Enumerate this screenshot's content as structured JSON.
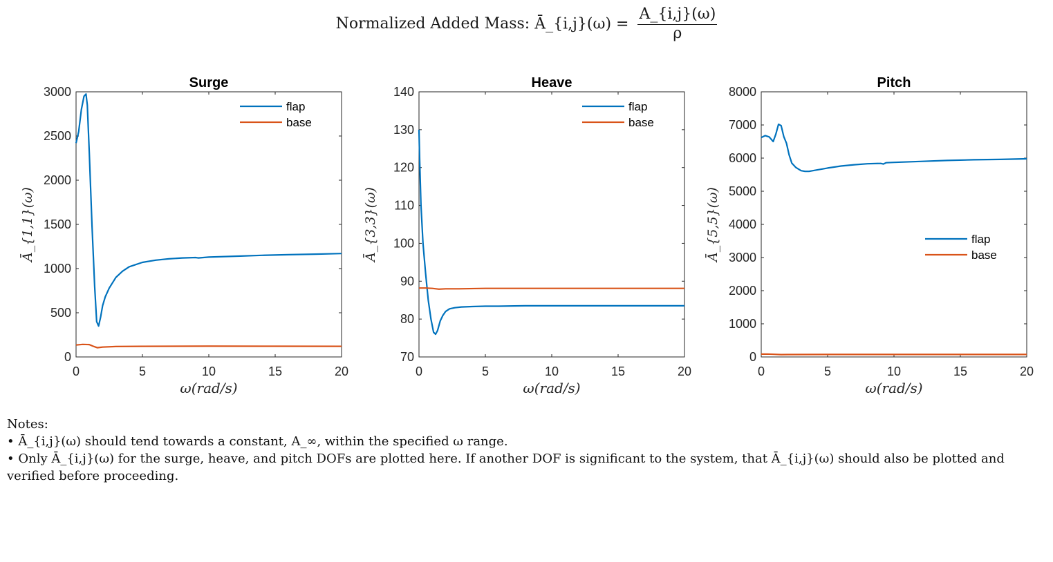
{
  "figure": {
    "title_text": "Normalized Added Mass: ",
    "title_lhs": "Ā_{i,j}(ω) =",
    "title_numerator": "A_{i,j}(ω)",
    "title_denominator": "ρ"
  },
  "colors": {
    "flap": "#0072BD",
    "base": "#D95319",
    "axis": "#262626"
  },
  "chart_data": [
    {
      "type": "line",
      "title": "Surge",
      "xlabel": "ω(rad/s)",
      "ylabel": "Ā_{1,1}(ω)",
      "xlim": [
        0,
        20
      ],
      "ylim": [
        0,
        3000
      ],
      "xticks": [
        0,
        5,
        10,
        15,
        20
      ],
      "yticks": [
        0,
        500,
        1000,
        1500,
        2000,
        2500,
        3000
      ],
      "legend_position": "top-right",
      "grid": false,
      "series": [
        {
          "name": "flap",
          "x": [
            0,
            0.2,
            0.4,
            0.6,
            0.75,
            0.85,
            1.0,
            1.2,
            1.4,
            1.55,
            1.7,
            1.85,
            2.0,
            2.2,
            2.5,
            3.0,
            3.5,
            4.0,
            5.0,
            6.0,
            7.0,
            8.0,
            9.0,
            9.2,
            10.0,
            12.0,
            14.0,
            16.0,
            18.0,
            20.0
          ],
          "y": [
            2420,
            2550,
            2800,
            2950,
            2975,
            2850,
            2300,
            1500,
            800,
            400,
            350,
            450,
            580,
            680,
            780,
            900,
            970,
            1020,
            1070,
            1095,
            1110,
            1120,
            1125,
            1120,
            1130,
            1140,
            1150,
            1157,
            1163,
            1170
          ]
        },
        {
          "name": "base",
          "x": [
            0,
            0.5,
            1.0,
            1.3,
            1.6,
            2.0,
            3.0,
            5.0,
            10.0,
            15.0,
            20.0
          ],
          "y": [
            135,
            142,
            140,
            120,
            105,
            112,
            118,
            120,
            122,
            121,
            120
          ]
        }
      ]
    },
    {
      "type": "line",
      "title": "Heave",
      "xlabel": "ω(rad/s)",
      "ylabel": "Ā_{3,3}(ω)",
      "xlim": [
        0,
        20
      ],
      "ylim": [
        70,
        140
      ],
      "xticks": [
        0,
        5,
        10,
        15,
        20
      ],
      "yticks": [
        70,
        80,
        90,
        100,
        110,
        120,
        130,
        140
      ],
      "legend_position": "top-right",
      "grid": false,
      "series": [
        {
          "name": "flap",
          "x": [
            0,
            0.05,
            0.15,
            0.3,
            0.5,
            0.7,
            0.9,
            1.1,
            1.25,
            1.4,
            1.6,
            1.8,
            2.0,
            2.3,
            2.7,
            3.2,
            4.0,
            5.0,
            6.0,
            8.0,
            8.5,
            10.0,
            12.0,
            15.0,
            20.0
          ],
          "y": [
            130,
            122,
            110,
            100,
            92,
            85,
            80,
            76.5,
            76,
            77,
            79.5,
            81,
            82,
            82.7,
            83,
            83.2,
            83.3,
            83.4,
            83.4,
            83.5,
            83.5,
            83.5,
            83.5,
            83.5,
            83.5
          ]
        },
        {
          "name": "base",
          "x": [
            0,
            0.5,
            1.0,
            1.5,
            2.0,
            3.0,
            5.0,
            10.0,
            15.0,
            20.0
          ],
          "y": [
            88.2,
            88.2,
            88.1,
            87.9,
            88.0,
            88.0,
            88.1,
            88.1,
            88.1,
            88.1
          ]
        }
      ]
    },
    {
      "type": "line",
      "title": "Pitch",
      "xlabel": "ω(rad/s)",
      "ylabel": "Ā_{5,5}(ω)",
      "xlim": [
        0,
        20
      ],
      "ylim": [
        0,
        8000
      ],
      "xticks": [
        0,
        5,
        10,
        15,
        20
      ],
      "yticks": [
        0,
        1000,
        2000,
        3000,
        4000,
        5000,
        6000,
        7000,
        8000
      ],
      "legend_position": "right",
      "grid": false,
      "series": [
        {
          "name": "flap",
          "x": [
            0,
            0.3,
            0.6,
            0.9,
            1.1,
            1.3,
            1.5,
            1.7,
            1.9,
            2.1,
            2.3,
            2.6,
            3.0,
            3.3,
            3.6,
            4.0,
            5.0,
            6.0,
            7.0,
            8.0,
            9.0,
            9.2,
            9.4,
            10.0,
            12.0,
            14.0,
            16.0,
            18.0,
            20.0
          ],
          "y": [
            6620,
            6680,
            6640,
            6500,
            6720,
            7020,
            6980,
            6650,
            6450,
            6100,
            5850,
            5720,
            5620,
            5600,
            5600,
            5630,
            5700,
            5760,
            5800,
            5830,
            5840,
            5820,
            5860,
            5870,
            5900,
            5930,
            5950,
            5960,
            5980
          ]
        },
        {
          "name": "base",
          "x": [
            0,
            0.5,
            1.0,
            1.5,
            2.0,
            5.0,
            10.0,
            15.0,
            20.0
          ],
          "y": [
            85,
            88,
            80,
            70,
            72,
            75,
            75,
            75,
            75
          ]
        }
      ]
    }
  ],
  "notes": {
    "heading": "Notes:",
    "bullet_1": "• Ā_{i,j}(ω) should tend towards a constant, A_∞, within the specified ω range.",
    "bullet_2": "• Only Ā_{i,j}(ω) for the surge, heave, and pitch DOFs are plotted here. If another DOF is significant to the system, that Ā_{i,j}(ω) should also be plotted and verified before proceeding."
  }
}
